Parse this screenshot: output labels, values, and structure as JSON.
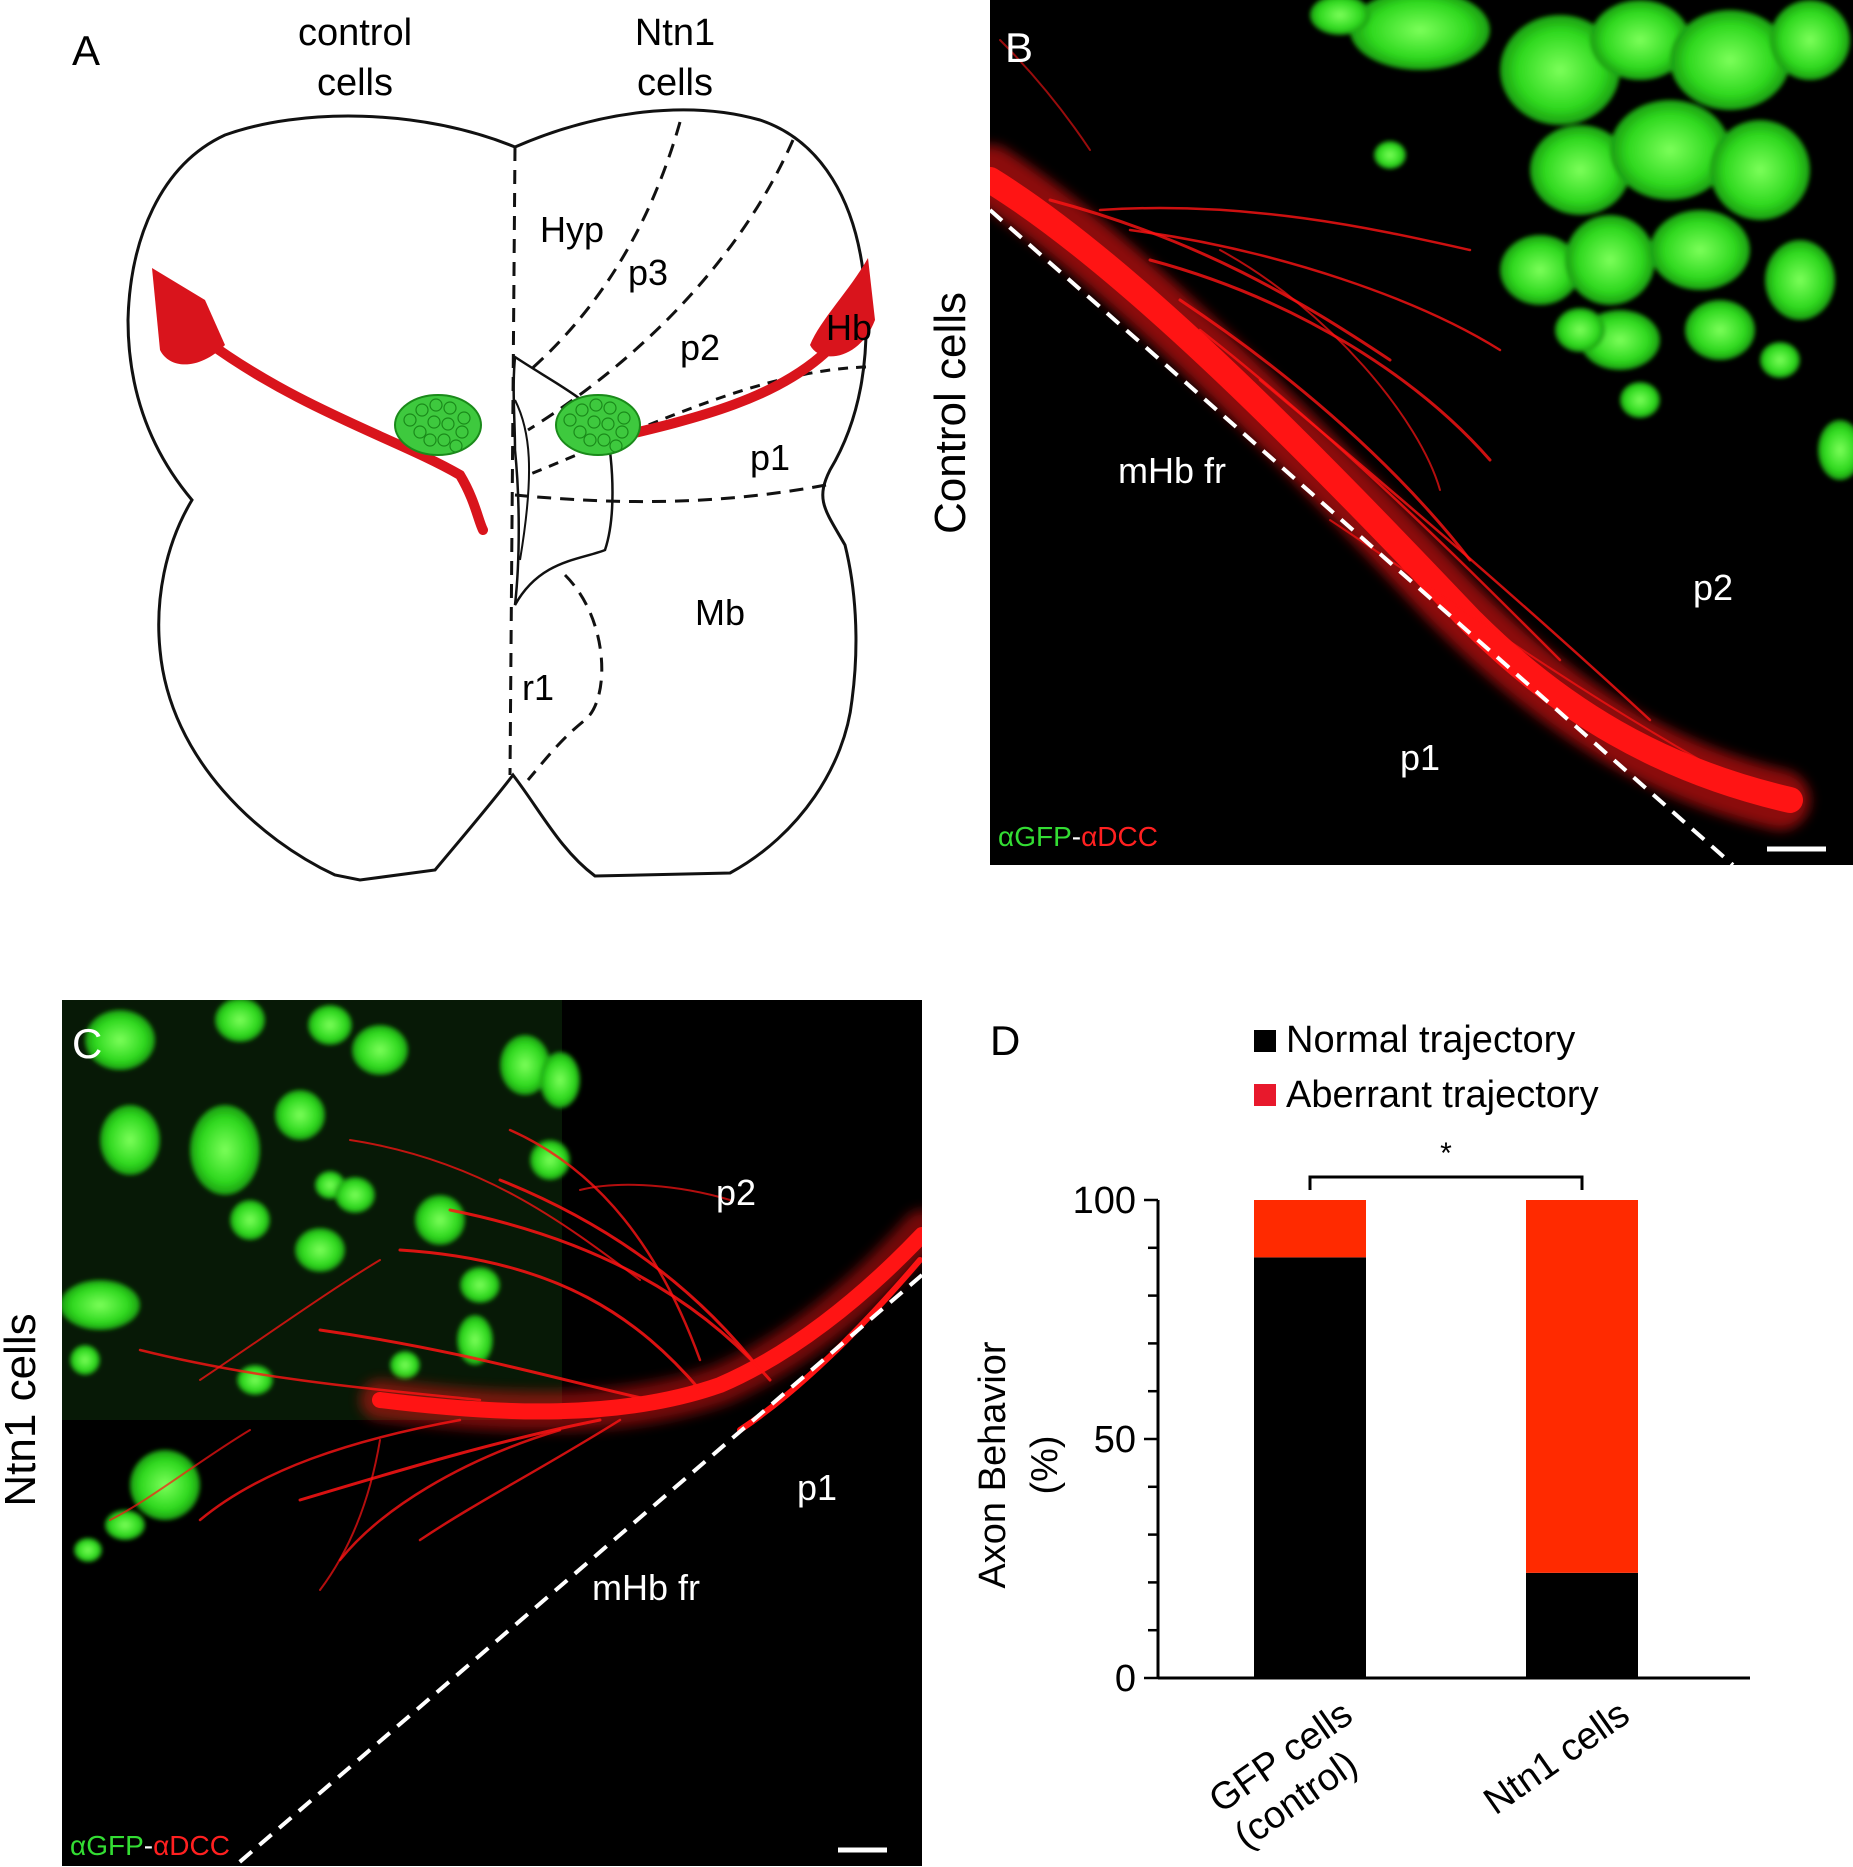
{
  "panel_a": {
    "letter": "A",
    "col_left_line1": "control",
    "col_left_line2": "cells",
    "col_right_line1": "Ntn1",
    "col_right_line2": "cells",
    "regions": {
      "hyp": "Hyp",
      "p3": "p3",
      "p2": "p2",
      "hb": "Hb",
      "p1": "p1",
      "mb": "Mb",
      "r1": "r1"
    },
    "colors": {
      "axon": "#d9141c",
      "cells": "#3ec93e",
      "outline": "#111111"
    }
  },
  "panel_b": {
    "letter": "B",
    "side_label": "Control cells",
    "region_mhb": "mHb fr",
    "region_p2": "p2",
    "region_p1": "p1",
    "stain_green": "αGFP",
    "stain_sep": "-",
    "stain_red": "αDCC"
  },
  "panel_c": {
    "letter": "C",
    "side_label": "Ntn1 cells",
    "region_p2": "p2",
    "region_p1": "p1",
    "region_mhb": "mHb fr",
    "stain_green": "αGFP",
    "stain_sep": "-",
    "stain_red": "αDCC"
  },
  "panel_d": {
    "letter": "D",
    "significance": "*",
    "ylabel_line1": "Axon Behavior",
    "ylabel_line2": "(%)",
    "category_1_line1": "GFP cells",
    "category_1_line2": "(control)",
    "category_2": "Ntn1 cells"
  },
  "chart_data": {
    "type": "bar",
    "stacked": true,
    "categories": [
      "GFP cells (control)",
      "Ntn1 cells"
    ],
    "series": [
      {
        "name": "Normal trajectory",
        "color": "#000000",
        "values": [
          88,
          22
        ]
      },
      {
        "name": "Aberrant trajectory",
        "color": "#ff2a00",
        "values": [
          12,
          78
        ]
      }
    ],
    "ylabel": "Axon Behavior (%)",
    "ylim": [
      0,
      100
    ],
    "yticks": [
      0,
      50,
      100
    ],
    "legend": "top",
    "grid": false
  }
}
